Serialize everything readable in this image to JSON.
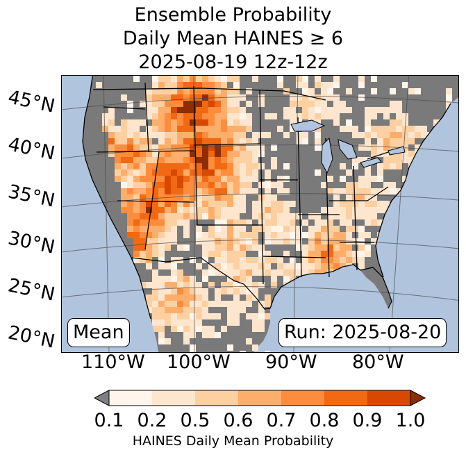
{
  "title": {
    "line1": "Ensemble Probability",
    "line2": "Daily Mean HAINES ≥ 6",
    "line3": "2025-08-19 12z-12z"
  },
  "map": {
    "ocean_color": "#b0c4de",
    "no_data_land_color": "#7a7a7a",
    "latitude_labels": [
      "45°N",
      "40°N",
      "35°N",
      "30°N",
      "25°N",
      "20°N"
    ],
    "longitude_labels": [
      "110°W",
      "100°W",
      "90°W",
      "80°W"
    ]
  },
  "labels": {
    "mean": "Mean",
    "run": "Run: 2025-08-20"
  },
  "colorbar": {
    "label": "HAINES Daily Mean Probability",
    "ticks": [
      "0.1",
      "0.2",
      "0.5",
      "0.6",
      "0.7",
      "0.8",
      "0.9",
      "1.0"
    ],
    "colors": [
      "#fff5eb",
      "#fee6ce",
      "#fdd0a2",
      "#fdae6b",
      "#fd8d3c",
      "#f16913",
      "#d94801"
    ],
    "under_color": "#808080",
    "over_color": "#8c2d04"
  }
}
